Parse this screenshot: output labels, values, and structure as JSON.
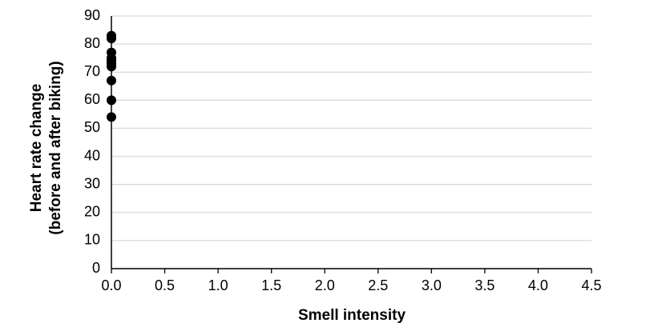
{
  "chart_data": {
    "type": "scatter",
    "xlabel": "Smell intensity",
    "ylabel": [
      "Heart rate change",
      "(before and after biking)"
    ],
    "series": [
      {
        "color": "#000000",
        "x": [
          0,
          0,
          0,
          0,
          0,
          0,
          0,
          0,
          0,
          0
        ],
        "values": [
          83,
          82,
          77,
          75,
          74,
          73,
          72,
          67,
          60,
          54
        ]
      }
    ],
    "xlim": [
      0,
      4.5
    ],
    "xticks": [
      {
        "value": 0,
        "label": "0.0"
      },
      {
        "value": 0.5,
        "label": "0.5"
      },
      {
        "value": 1,
        "label": "1.0"
      },
      {
        "value": 1.5,
        "label": "1.5"
      },
      {
        "value": 2,
        "label": "2.0"
      },
      {
        "value": 2.5,
        "label": "2.5"
      },
      {
        "value": 3,
        "label": "3.0"
      },
      {
        "value": 3.5,
        "label": "3.5"
      },
      {
        "value": 4,
        "label": "4.0"
      },
      {
        "value": 4.5,
        "label": "4.5"
      }
    ],
    "ylim": [
      0,
      90
    ],
    "yticks": [
      0,
      10,
      20,
      30,
      40,
      50,
      60,
      70,
      80,
      90
    ],
    "grid": true
  }
}
